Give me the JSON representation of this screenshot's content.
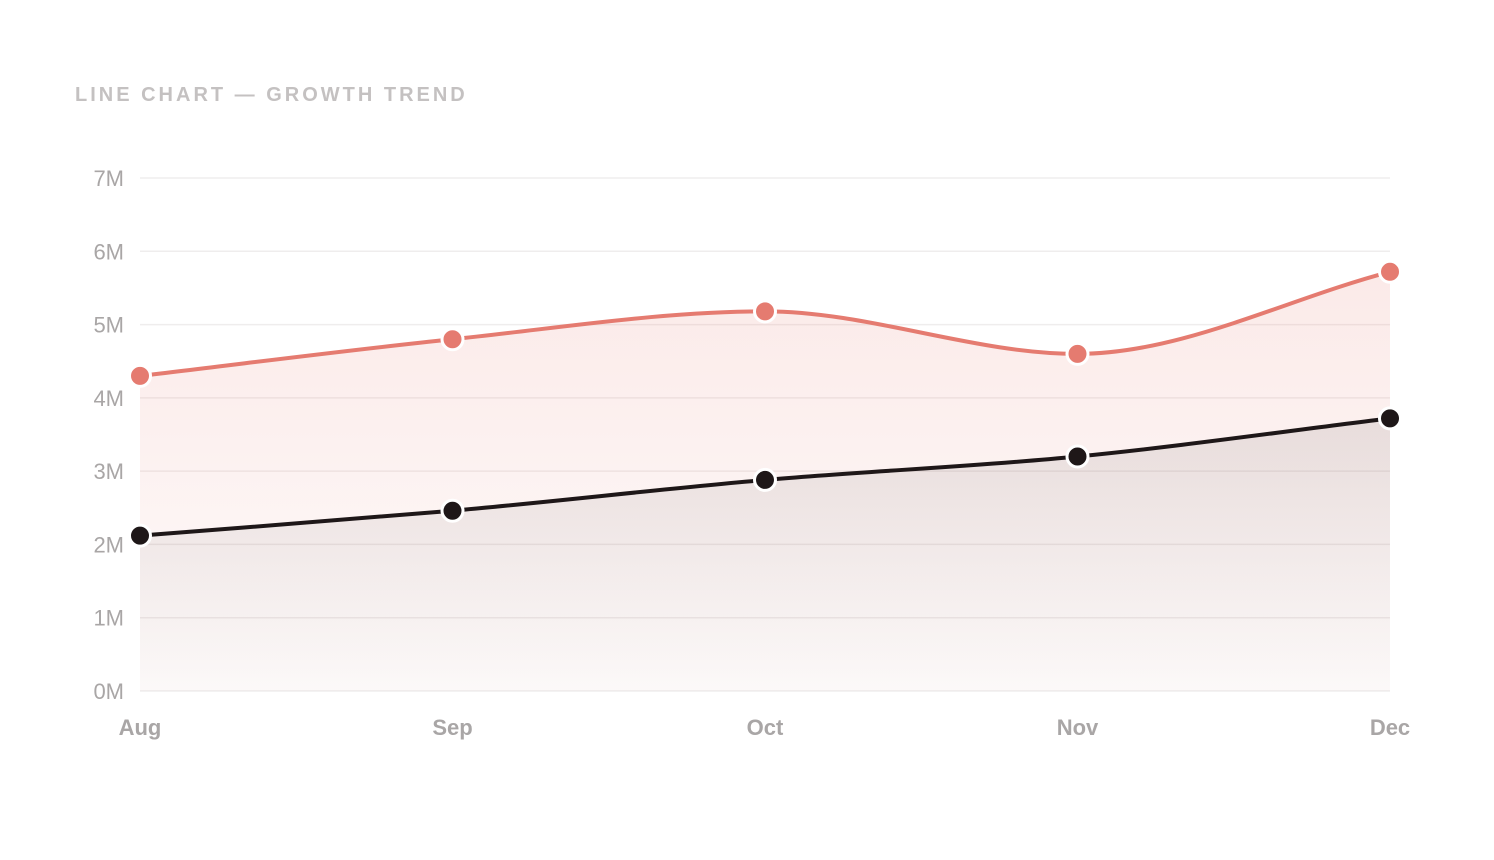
{
  "chart_data": {
    "type": "line",
    "title": "LINE CHART — GROWTH TREND",
    "xlabel": "",
    "ylabel": "",
    "categories": [
      "Aug",
      "Sep",
      "Oct",
      "Nov",
      "Dec"
    ],
    "yticks": [
      "0M",
      "1M",
      "2M",
      "3M",
      "4M",
      "5M",
      "6M",
      "7M"
    ],
    "ylim": [
      0,
      7
    ],
    "grid": true,
    "legend": "none",
    "series": [
      {
        "values": [
          4.3,
          4.8,
          5.18,
          4.6,
          5.72
        ],
        "color": "#e57b70",
        "fill": true,
        "curve": "smooth"
      },
      {
        "values": [
          2.12,
          2.46,
          2.88,
          3.2,
          3.72
        ],
        "color": "#1e1718",
        "fill": true,
        "curve": "smooth"
      }
    ]
  }
}
